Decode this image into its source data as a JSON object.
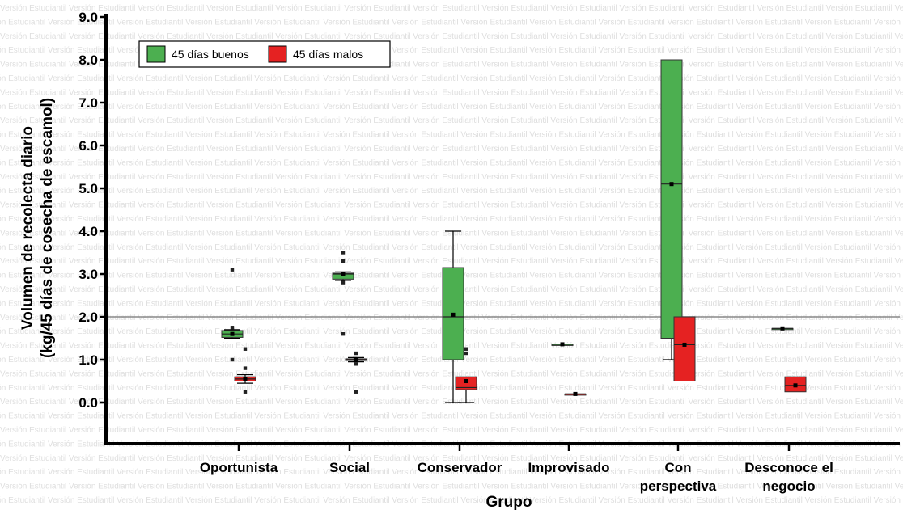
{
  "chart_data": {
    "type": "box",
    "xlabel": "Grupo",
    "ylabel_lines": [
      "Volumen de recolecta diario",
      "(kg/45 días de cosecha de escamol)"
    ],
    "ylim": [
      0,
      9
    ],
    "yticks": [
      "0.0",
      "1.0",
      "2.0",
      "3.0",
      "4.0",
      "5.0",
      "6.0",
      "7.0",
      "8.0",
      "9.0"
    ],
    "reference_line": 2.0,
    "legend_position": "top-left",
    "categories": [
      [
        "Oportunista"
      ],
      [
        "Social"
      ],
      [
        "Conservador"
      ],
      [
        "Improvisado"
      ],
      [
        "Con",
        "perspectiva"
      ],
      [
        "Desconoce el",
        "negocio"
      ]
    ],
    "series": [
      {
        "name": "45 días buenos",
        "color": "#4caf50",
        "boxes": [
          {
            "min": 1.5,
            "q1": 1.52,
            "median": 1.6,
            "q3": 1.68,
            "max": 1.7,
            "mean": 1.6,
            "outliers": [
              3.1,
              1.75,
              1.0
            ]
          },
          {
            "min": 2.85,
            "q1": 2.88,
            "median": 3.0,
            "q3": 3.02,
            "max": 3.05,
            "mean": 3.0,
            "outliers": [
              3.5,
              3.3,
              2.8,
              1.6
            ]
          },
          {
            "min": 0.0,
            "q1": 1.0,
            "median": 2.0,
            "q3": 3.15,
            "max": 4.0,
            "mean": 2.05,
            "outliers": []
          },
          {
            "min": 1.36,
            "q1": 1.36,
            "median": 1.36,
            "q3": 1.36,
            "max": 1.36,
            "mean": 1.36,
            "outliers": []
          },
          {
            "min": 1.0,
            "q1": 1.5,
            "median": 5.1,
            "q3": 8.0,
            "max": 8.0,
            "mean": 5.1,
            "outliers": []
          },
          {
            "min": 1.73,
            "q1": 1.73,
            "median": 1.73,
            "q3": 1.73,
            "max": 1.73,
            "mean": 1.73,
            "outliers": []
          }
        ]
      },
      {
        "name": "45 días malos",
        "color": "#e52222",
        "boxes": [
          {
            "min": 0.45,
            "q1": 0.5,
            "median": 0.55,
            "q3": 0.6,
            "max": 0.65,
            "mean": 0.55,
            "outliers": [
              1.25,
              0.8,
              0.25
            ]
          },
          {
            "min": 0.95,
            "q1": 0.98,
            "median": 1.0,
            "q3": 1.02,
            "max": 1.05,
            "mean": 1.0,
            "outliers": [
              1.15,
              0.9,
              0.25
            ]
          },
          {
            "min": 0.0,
            "q1": 0.3,
            "median": 0.35,
            "q3": 0.6,
            "max": 0.6,
            "mean": 0.5,
            "outliers": [
              1.25,
              1.15
            ]
          },
          {
            "min": 0.2,
            "q1": 0.2,
            "median": 0.2,
            "q3": 0.2,
            "max": 0.2,
            "mean": 0.2,
            "outliers": []
          },
          {
            "min": 0.5,
            "q1": 0.5,
            "median": 1.35,
            "q3": 2.0,
            "max": 2.0,
            "mean": 1.35,
            "outliers": []
          },
          {
            "min": 0.25,
            "q1": 0.25,
            "median": 0.4,
            "q3": 0.6,
            "max": 0.6,
            "mean": 0.4,
            "outliers": []
          }
        ]
      }
    ]
  },
  "watermark": "Versión Estudiantil"
}
